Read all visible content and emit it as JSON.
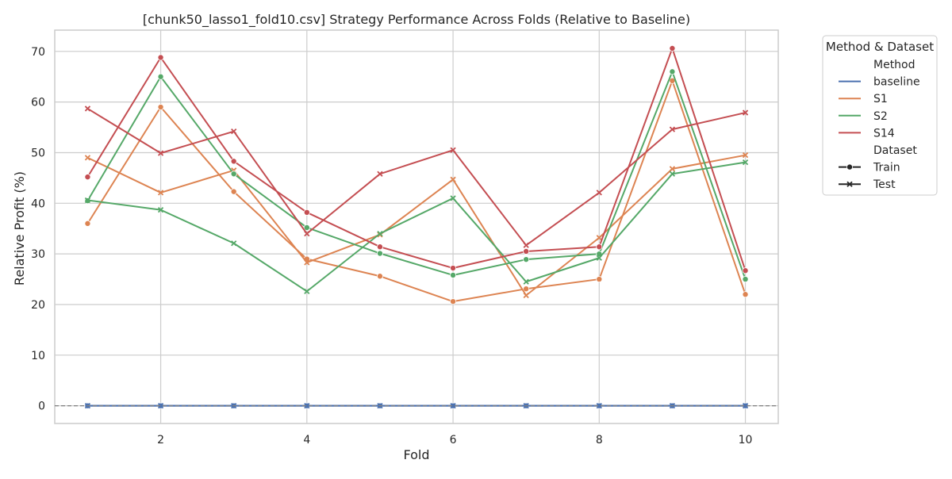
{
  "chart_data": {
    "type": "line",
    "title": "[chunk50_lasso1_fold10.csv] Strategy Performance Across Folds (Relative to Baseline)",
    "xlabel": "Fold",
    "ylabel": "Relative Profit (%)",
    "x": [
      1,
      2,
      3,
      4,
      5,
      6,
      7,
      8,
      9,
      10
    ],
    "xticks": [
      "2",
      "4",
      "6",
      "8",
      "10"
    ],
    "xtick_values": [
      2,
      4,
      6,
      8,
      10
    ],
    "yticks": [
      "0",
      "10",
      "20",
      "30",
      "40",
      "50",
      "60",
      "70"
    ],
    "ytick_values": [
      0,
      10,
      20,
      30,
      40,
      50,
      60,
      70
    ],
    "xlim": [
      0.55,
      10.45
    ],
    "ylim": [
      -3.5,
      74.2
    ],
    "grid": true,
    "reference_line": {
      "y": 0,
      "style": "dashed",
      "color": "#808080"
    },
    "legend": {
      "title": "Method & Dataset",
      "method_header": "Method",
      "dataset_header": "Dataset",
      "placement": "outside-right",
      "methods": [
        {
          "label": "baseline",
          "color": "#4c72b0"
        },
        {
          "label": "S1",
          "color": "#dd8452"
        },
        {
          "label": "S2",
          "color": "#55a868"
        },
        {
          "label": "S14",
          "color": "#c44e52"
        }
      ],
      "datasets": [
        {
          "label": "Train",
          "marker": "circle"
        },
        {
          "label": "Test",
          "marker": "x"
        }
      ]
    },
    "series": [
      {
        "method": "baseline",
        "dataset": "Train",
        "color": "#4c72b0",
        "marker": "circle",
        "values": [
          0,
          0,
          0,
          0,
          0,
          0,
          0,
          0,
          0,
          0
        ]
      },
      {
        "method": "baseline",
        "dataset": "Test",
        "color": "#4c72b0",
        "marker": "x",
        "values": [
          0,
          0,
          0,
          0,
          0,
          0,
          0,
          0,
          0,
          0
        ]
      },
      {
        "method": "S1",
        "dataset": "Train",
        "color": "#dd8452",
        "marker": "circle",
        "values": [
          36.0,
          59.0,
          42.3,
          29.0,
          25.6,
          20.6,
          23.1,
          25.0,
          64.2,
          22.0
        ]
      },
      {
        "method": "S1",
        "dataset": "Test",
        "color": "#dd8452",
        "marker": "x",
        "values": [
          49.0,
          42.1,
          46.5,
          28.3,
          33.8,
          44.7,
          21.8,
          33.2,
          46.8,
          49.5
        ]
      },
      {
        "method": "S2",
        "dataset": "Train",
        "color": "#55a868",
        "marker": "circle",
        "values": [
          40.5,
          65.0,
          45.8,
          35.2,
          30.1,
          25.8,
          28.9,
          30.0,
          66.0,
          25.0
        ]
      },
      {
        "method": "S2",
        "dataset": "Test",
        "color": "#55a868",
        "marker": "x",
        "values": [
          40.6,
          38.7,
          32.1,
          22.6,
          34.0,
          41.0,
          24.5,
          29.2,
          45.8,
          48.1
        ]
      },
      {
        "method": "S14",
        "dataset": "Train",
        "color": "#c44e52",
        "marker": "circle",
        "values": [
          45.2,
          68.8,
          48.3,
          38.2,
          31.4,
          27.2,
          30.5,
          31.4,
          70.6,
          26.7
        ]
      },
      {
        "method": "S14",
        "dataset": "Test",
        "color": "#c44e52",
        "marker": "x",
        "values": [
          58.7,
          49.9,
          54.2,
          34.0,
          45.8,
          50.5,
          31.7,
          42.1,
          54.6,
          57.9
        ]
      }
    ]
  }
}
